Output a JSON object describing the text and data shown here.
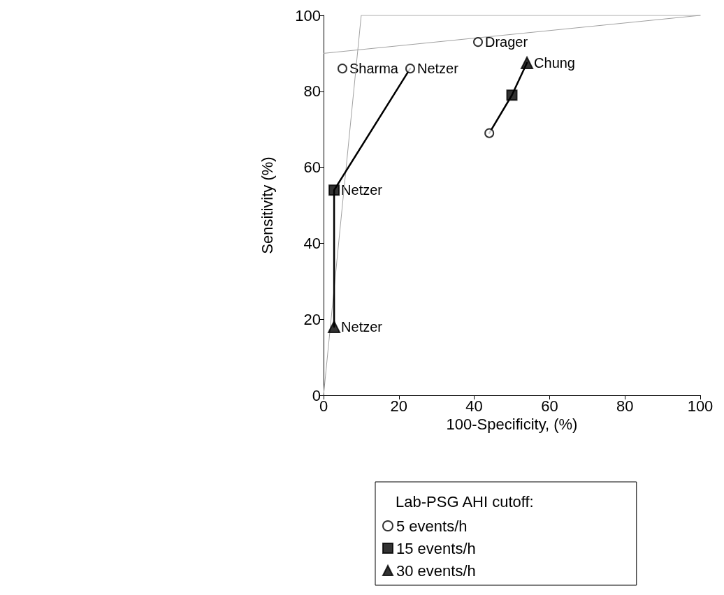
{
  "chart_data": {
    "type": "scatter",
    "xlabel": "100-Specificity, (%)",
    "ylabel": "Sensitivity (%)",
    "legend_title": "Lab-PSG AHI cutoff:",
    "xlim": [
      0,
      100
    ],
    "xticks": [
      0,
      20,
      40,
      60,
      80,
      100
    ],
    "ylim": [
      0,
      100
    ],
    "yticks": [
      0,
      20,
      40,
      60,
      80,
      100
    ],
    "grid": false,
    "legend": "bottom",
    "series": [
      {
        "type": "line",
        "color": "#a0a0a0",
        "marker": "none",
        "x": [
          0,
          10,
          100
        ],
        "values": [
          0,
          100,
          100
        ]
      },
      {
        "type": "line",
        "color": "#a0a0a0",
        "marker": "none",
        "x": [
          0,
          100
        ],
        "values": [
          90,
          100
        ]
      },
      {
        "type": "line",
        "color": "#000000",
        "marker": "none",
        "x": [
          2.8,
          2.8,
          23
        ],
        "values": [
          18,
          54,
          86
        ]
      },
      {
        "type": "line",
        "color": "#000000",
        "marker": "none",
        "x": [
          44,
          50,
          54
        ],
        "values": [
          69,
          79,
          87.5
        ]
      },
      {
        "name": "5 events/h",
        "color": "#000000",
        "marker": "circle",
        "x": [
          5,
          23,
          41,
          44
        ],
        "values": [
          86,
          86,
          93,
          69
        ]
      },
      {
        "name": "15 events/h",
        "color": "#000000",
        "marker": "square",
        "x": [
          2.8,
          50
        ],
        "values": [
          54,
          79
        ]
      },
      {
        "name": "30 events/h",
        "color": "#000000",
        "marker": "triangle",
        "x": [
          2.8,
          54
        ],
        "values": [
          18,
          87.5
        ]
      }
    ],
    "annotations": [
      {
        "text": "Sharma",
        "x": 5,
        "y": 86
      },
      {
        "text": "Netzer",
        "x": 23,
        "y": 86
      },
      {
        "text": "Drager",
        "x": 41,
        "y": 93
      },
      {
        "text": "Chung",
        "x": 54,
        "y": 87.5
      },
      {
        "text": "Netzer",
        "x": 2.8,
        "y": 54
      },
      {
        "text": "Netzer",
        "x": 2.8,
        "y": 18
      }
    ]
  }
}
